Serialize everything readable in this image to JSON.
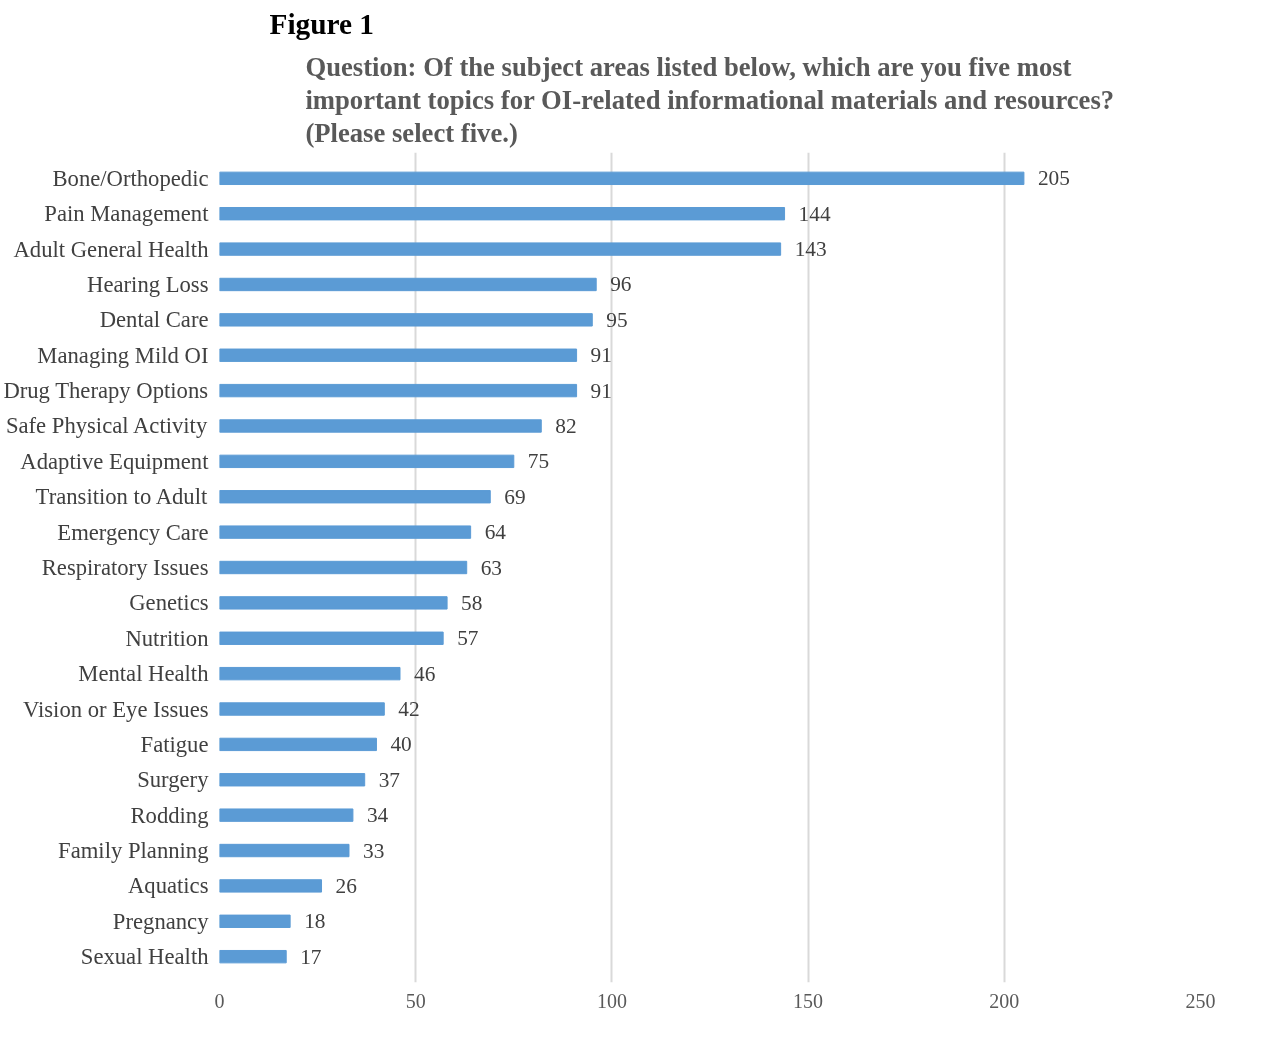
{
  "chart_data": {
    "type": "bar",
    "orientation": "horizontal",
    "title": "Figure 1",
    "subtitle": "Question: Of the subject areas listed below, which are you five most\nimportant topics for OI-related informational materials and resources?\n(Please select five.)",
    "categories": [
      "Bone/Orthopedic",
      "Pain Management",
      "Adult General Health",
      "Hearing Loss",
      "Dental Care",
      "Managing Mild OI",
      "Drug Therapy Options",
      "Safe Physical Activity",
      "Adaptive Equipment",
      "Transition to Adult",
      "Emergency Care",
      "Respiratory Issues",
      "Genetics",
      "Nutrition",
      "Mental Health",
      "Vision or Eye Issues",
      "Fatigue",
      "Surgery",
      "Rodding",
      "Family Planning",
      "Aquatics",
      "Pregnancy",
      "Sexual Health"
    ],
    "values": [
      205,
      144,
      143,
      96,
      95,
      91,
      91,
      82,
      75,
      69,
      64,
      63,
      58,
      57,
      46,
      42,
      40,
      37,
      34,
      33,
      26,
      18,
      17
    ],
    "color": "#5b9bd5",
    "xlim": [
      0,
      250
    ],
    "xticks": [
      0,
      50,
      100,
      150,
      200,
      250
    ],
    "grid": "x",
    "data_labels": true
  }
}
